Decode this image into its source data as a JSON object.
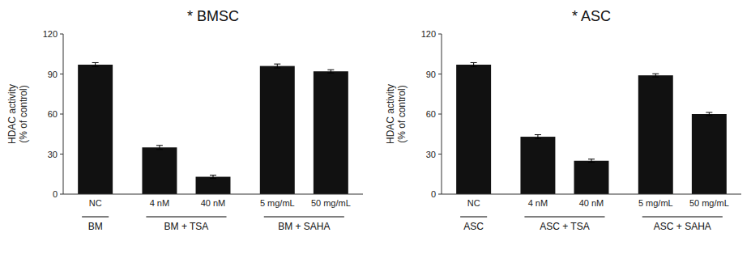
{
  "chart_data": [
    {
      "type": "bar",
      "title": "* BMSC",
      "ylabel": "HDAC activity\n(% of control)",
      "categories": [
        "NC",
        "4 nM",
        "40 nM",
        "5 mg/mL",
        "50 mg/mL"
      ],
      "values": [
        97,
        35,
        13,
        96,
        92
      ],
      "errors": [
        1.5,
        1.5,
        1.2,
        1.5,
        1.2
      ],
      "groups": [
        {
          "label": "BM",
          "count": 1
        },
        {
          "label": "BM + TSA",
          "count": 2
        },
        {
          "label": "BM + SAHA",
          "count": 2
        }
      ],
      "color": "#111111",
      "ylim": [
        0,
        120
      ],
      "yticks": [
        0,
        30,
        60,
        90,
        120
      ],
      "grid": false
    },
    {
      "type": "bar",
      "title": "* ASC",
      "ylabel": "HDAC activity\n(% of control)",
      "categories": [
        "NC",
        "4 nM",
        "40 nM",
        "5 mg/mL",
        "50 mg/mL"
      ],
      "values": [
        97,
        43,
        25,
        89,
        60
      ],
      "errors": [
        1.5,
        1.5,
        1.2,
        1.2,
        1.2
      ],
      "groups": [
        {
          "label": "ASC",
          "count": 1
        },
        {
          "label": "ASC + TSA",
          "count": 2
        },
        {
          "label": "ASC + SAHA",
          "count": 2
        }
      ],
      "color": "#111111",
      "ylim": [
        0,
        120
      ],
      "yticks": [
        0,
        30,
        60,
        90,
        120
      ],
      "grid": false
    }
  ]
}
